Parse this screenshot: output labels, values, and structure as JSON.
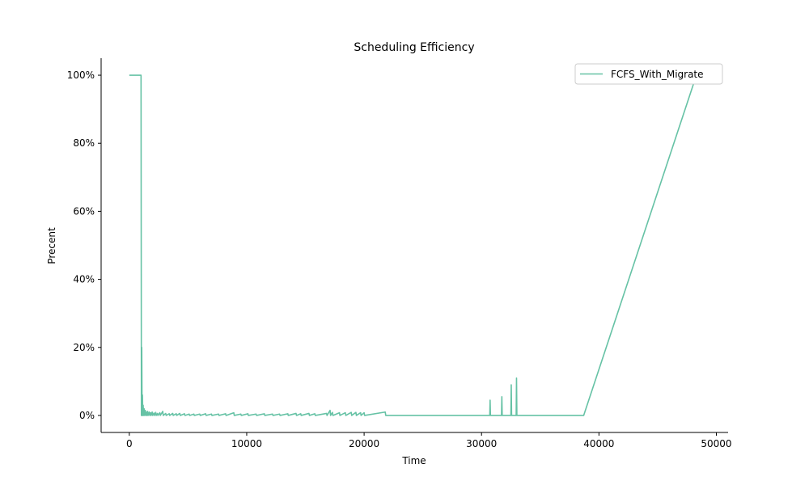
{
  "chart_data": {
    "type": "line",
    "title": "Scheduling Efficiency",
    "xlabel": "Time",
    "ylabel": "Precent",
    "xlim": [
      -2400,
      51000
    ],
    "ylim": [
      -0.05,
      1.05
    ],
    "x_ticks": [
      0,
      10000,
      20000,
      30000,
      40000,
      50000
    ],
    "x_tick_labels": [
      "0",
      "10000",
      "20000",
      "30000",
      "40000",
      "50000"
    ],
    "y_ticks": [
      0,
      0.2,
      0.4,
      0.6,
      0.8,
      1.0
    ],
    "y_tick_labels": [
      "0%",
      "20%",
      "40%",
      "60%",
      "80%",
      "100%"
    ],
    "legend_position": "top-right",
    "grid": false,
    "series": [
      {
        "name": "FCFS_With_Migrate",
        "color": "#66c2a5",
        "points": [
          [
            0,
            1.0
          ],
          [
            1000,
            1.0
          ],
          [
            1030,
            0.0
          ],
          [
            1060,
            0.2
          ],
          [
            1090,
            0.0
          ],
          [
            1120,
            0.06
          ],
          [
            1150,
            0.0
          ],
          [
            1180,
            0.03
          ],
          [
            1210,
            0.0
          ],
          [
            1260,
            0.02
          ],
          [
            1300,
            0.0
          ],
          [
            1360,
            0.015
          ],
          [
            1400,
            0.0
          ],
          [
            1460,
            0.01
          ],
          [
            1500,
            0.0
          ],
          [
            1560,
            0.012
          ],
          [
            1600,
            0.0
          ],
          [
            1700,
            0.01
          ],
          [
            1740,
            0.0
          ],
          [
            1820,
            0.008
          ],
          [
            1860,
            0.0
          ],
          [
            1950,
            0.01
          ],
          [
            1990,
            0.0
          ],
          [
            2100,
            0.007
          ],
          [
            2140,
            0.0
          ],
          [
            2250,
            0.009
          ],
          [
            2290,
            0.0
          ],
          [
            2400,
            0.006
          ],
          [
            2440,
            0.0
          ],
          [
            2600,
            0.008
          ],
          [
            2640,
            0.0
          ],
          [
            2850,
            0.012
          ],
          [
            2890,
            0.0
          ],
          [
            3100,
            0.006
          ],
          [
            3140,
            0.0
          ],
          [
            3400,
            0.005
          ],
          [
            3440,
            0.0
          ],
          [
            3700,
            0.006
          ],
          [
            3740,
            0.0
          ],
          [
            4000,
            0.005
          ],
          [
            4040,
            0.0
          ],
          [
            4300,
            0.006
          ],
          [
            4340,
            0.0
          ],
          [
            4700,
            0.005
          ],
          [
            4740,
            0.0
          ],
          [
            5100,
            0.004
          ],
          [
            5140,
            0.0
          ],
          [
            5500,
            0.004
          ],
          [
            5540,
            0.0
          ],
          [
            6000,
            0.004
          ],
          [
            6040,
            0.0
          ],
          [
            6500,
            0.005
          ],
          [
            6540,
            0.0
          ],
          [
            7000,
            0.004
          ],
          [
            7040,
            0.0
          ],
          [
            7600,
            0.004
          ],
          [
            7640,
            0.0
          ],
          [
            8200,
            0.005
          ],
          [
            8240,
            0.0
          ],
          [
            8900,
            0.008
          ],
          [
            8940,
            0.0
          ],
          [
            9500,
            0.004
          ],
          [
            9540,
            0.0
          ],
          [
            10100,
            0.005
          ],
          [
            10140,
            0.0
          ],
          [
            10800,
            0.004
          ],
          [
            10840,
            0.0
          ],
          [
            11500,
            0.005
          ],
          [
            11540,
            0.0
          ],
          [
            12200,
            0.004
          ],
          [
            12240,
            0.0
          ],
          [
            12800,
            0.004
          ],
          [
            12840,
            0.0
          ],
          [
            13500,
            0.005
          ],
          [
            13540,
            0.0
          ],
          [
            14200,
            0.006
          ],
          [
            14240,
            0.0
          ],
          [
            14600,
            0.005
          ],
          [
            14640,
            0.0
          ],
          [
            15300,
            0.006
          ],
          [
            15340,
            0.0
          ],
          [
            15800,
            0.005
          ],
          [
            15840,
            0.0
          ],
          [
            16800,
            0.006
          ],
          [
            16840,
            0.0
          ],
          [
            17100,
            0.015
          ],
          [
            17140,
            0.0
          ],
          [
            17300,
            0.009
          ],
          [
            17340,
            0.0
          ],
          [
            17900,
            0.008
          ],
          [
            17940,
            0.0
          ],
          [
            18400,
            0.008
          ],
          [
            18440,
            0.0
          ],
          [
            18900,
            0.009
          ],
          [
            18940,
            0.0
          ],
          [
            19300,
            0.009
          ],
          [
            19340,
            0.0
          ],
          [
            19700,
            0.008
          ],
          [
            19740,
            0.0
          ],
          [
            20000,
            0.008
          ],
          [
            20040,
            0.0
          ],
          [
            21800,
            0.01
          ],
          [
            21840,
            0.0
          ],
          [
            30700,
            0.0
          ],
          [
            30730,
            0.045
          ],
          [
            30760,
            0.0
          ],
          [
            31700,
            0.0
          ],
          [
            31730,
            0.055
          ],
          [
            31760,
            0.0
          ],
          [
            32500,
            0.0
          ],
          [
            32530,
            0.09
          ],
          [
            32560,
            0.0
          ],
          [
            32950,
            0.0
          ],
          [
            32980,
            0.11
          ],
          [
            33010,
            0.0
          ],
          [
            38700,
            0.0
          ],
          [
            48300,
            1.0
          ]
        ]
      }
    ]
  }
}
